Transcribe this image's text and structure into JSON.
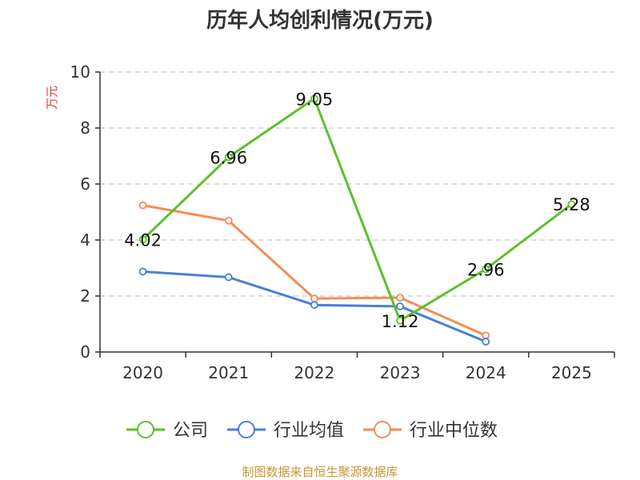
{
  "chart_data": {
    "type": "line",
    "title": "历年人均创利情况(万元)",
    "ylabel": "万元",
    "xlabel": "",
    "categories": [
      "2020",
      "2021",
      "2022",
      "2023",
      "2024",
      "2025"
    ],
    "ylim": [
      0,
      10
    ],
    "yticks": [
      0,
      2,
      4,
      6,
      8,
      10
    ],
    "grid": true,
    "legend_position": "bottom",
    "series": [
      {
        "name": "公司",
        "values": [
          4.02,
          6.96,
          9.05,
          1.12,
          2.96,
          5.28
        ],
        "color": "#5cc12a",
        "labels": [
          "4.02",
          "6.96",
          "9.05",
          "1.12",
          "2.96",
          "5.28"
        ]
      },
      {
        "name": "行业均值",
        "values": [
          2.87,
          2.67,
          1.68,
          1.63,
          0.37,
          null
        ],
        "color": "#4a7fd8"
      },
      {
        "name": "行业中位数",
        "values": [
          5.24,
          4.69,
          1.91,
          1.94,
          0.59,
          null
        ],
        "color": "#f38d57"
      }
    ],
    "source": "制图数据来自恒生聚源数据库"
  }
}
